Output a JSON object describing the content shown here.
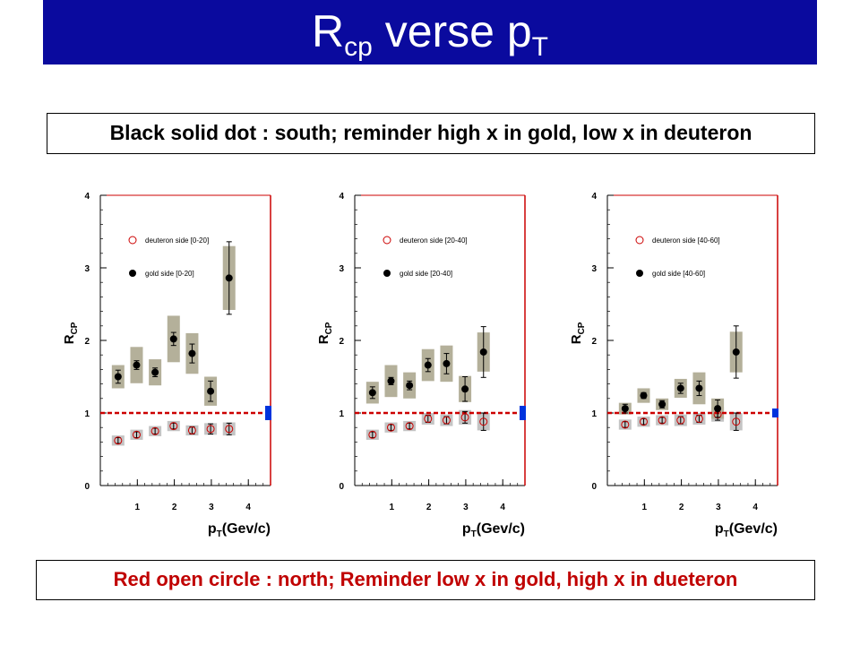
{
  "title": {
    "main": "R",
    "sub": "cp",
    "rest": " verse p",
    "sub2": "T"
  },
  "note_top": "Black solid dot : south;  reminder high x in gold, low x in deuteron",
  "note_bottom": "Red open circle : north; Reminder low x in gold,  high x in dueteron",
  "colors": {
    "title_bg": "#0a0a9e",
    "red": "#cc0000",
    "black": "#000000",
    "band": "#b4b09a",
    "band_light": "#c4c4c4",
    "unity_box": "#0033dd"
  },
  "chart_data": [
    {
      "type": "scatter",
      "ylabel": "R",
      "ylabel_sub": "CP",
      "xlabel": "p",
      "xlabel_sub": "T",
      "xlabel_rest": "(Gev/c)",
      "xlim": [
        0,
        4.6
      ],
      "ylim": [
        0,
        4
      ],
      "xticks": [
        1,
        2,
        3,
        4
      ],
      "yticks": [
        0,
        1,
        2,
        3,
        4
      ],
      "unity_line": 1,
      "series": [
        {
          "name": "deuteron side [0-20]",
          "marker": "open-circle",
          "x": [
            0.48,
            0.98,
            1.48,
            1.98,
            2.48,
            2.98,
            3.48
          ],
          "y": [
            0.62,
            0.7,
            0.75,
            0.82,
            0.76,
            0.78,
            0.78
          ],
          "err": [
            0.04,
            0.04,
            0.04,
            0.04,
            0.05,
            0.07,
            0.08
          ],
          "sys": [
            0.07,
            0.07,
            0.07,
            0.07,
            0.07,
            0.08,
            0.09
          ]
        },
        {
          "name": "gold side [0-20]",
          "marker": "solid-dot",
          "x": [
            0.48,
            0.98,
            1.48,
            1.98,
            2.48,
            2.98,
            3.48
          ],
          "y": [
            1.5,
            1.66,
            1.56,
            2.02,
            1.82,
            1.3,
            2.86
          ],
          "err": [
            0.09,
            0.06,
            0.06,
            0.09,
            0.13,
            0.14,
            0.5
          ],
          "sys": [
            0.16,
            0.25,
            0.18,
            0.32,
            0.28,
            0.2,
            0.44
          ]
        }
      ]
    },
    {
      "type": "scatter",
      "ylabel": "R",
      "ylabel_sub": "CP",
      "xlabel": "p",
      "xlabel_sub": "T",
      "xlabel_rest": "(Gev/c)",
      "xlim": [
        0,
        4.6
      ],
      "ylim": [
        0,
        4
      ],
      "xticks": [
        1,
        2,
        3,
        4
      ],
      "yticks": [
        0,
        1,
        2,
        3,
        4
      ],
      "unity_line": 1,
      "series": [
        {
          "name": "deuteron side [20-40]",
          "marker": "open-circle",
          "x": [
            0.48,
            0.98,
            1.48,
            1.98,
            2.48,
            2.98,
            3.48
          ],
          "y": [
            0.7,
            0.8,
            0.82,
            0.92,
            0.9,
            0.94,
            0.88
          ],
          "err": [
            0.04,
            0.04,
            0.04,
            0.05,
            0.05,
            0.08,
            0.12
          ],
          "sys": [
            0.07,
            0.07,
            0.07,
            0.08,
            0.08,
            0.1,
            0.12
          ]
        },
        {
          "name": "gold side [20-40]",
          "marker": "solid-dot",
          "x": [
            0.48,
            0.98,
            1.48,
            1.98,
            2.48,
            2.98,
            3.48
          ],
          "y": [
            1.28,
            1.44,
            1.38,
            1.66,
            1.68,
            1.33,
            1.84
          ],
          "err": [
            0.08,
            0.05,
            0.06,
            0.09,
            0.14,
            0.17,
            0.35
          ],
          "sys": [
            0.15,
            0.22,
            0.18,
            0.22,
            0.25,
            0.18,
            0.27
          ]
        }
      ]
    },
    {
      "type": "scatter",
      "ylabel": "R",
      "ylabel_sub": "CP",
      "xlabel": "p",
      "xlabel_sub": "T",
      "xlabel_rest": "(Gev/c)",
      "xlim": [
        0,
        4.6
      ],
      "ylim": [
        0,
        4
      ],
      "xticks": [
        1,
        2,
        3,
        4
      ],
      "yticks": [
        0,
        1,
        2,
        3,
        4
      ],
      "unity_line": 1,
      "series": [
        {
          "name": "deuteron side  [40-60]",
          "marker": "open-circle",
          "x": [
            0.48,
            0.98,
            1.48,
            1.98,
            2.48,
            2.98,
            3.48
          ],
          "y": [
            0.84,
            0.88,
            0.9,
            0.9,
            0.92,
            0.98,
            0.88
          ],
          "err": [
            0.04,
            0.04,
            0.04,
            0.05,
            0.05,
            0.08,
            0.12
          ],
          "sys": [
            0.07,
            0.07,
            0.07,
            0.08,
            0.08,
            0.1,
            0.12
          ]
        },
        {
          "name": "gold side [40-60]",
          "marker": "solid-dot",
          "x": [
            0.48,
            0.98,
            1.48,
            1.98,
            2.48,
            2.98,
            3.48
          ],
          "y": [
            1.06,
            1.24,
            1.12,
            1.34,
            1.34,
            1.06,
            1.84
          ],
          "err": [
            0.06,
            0.04,
            0.05,
            0.07,
            0.1,
            0.12,
            0.36
          ],
          "sys": [
            0.08,
            0.1,
            0.08,
            0.13,
            0.22,
            0.14,
            0.28
          ]
        }
      ]
    }
  ]
}
